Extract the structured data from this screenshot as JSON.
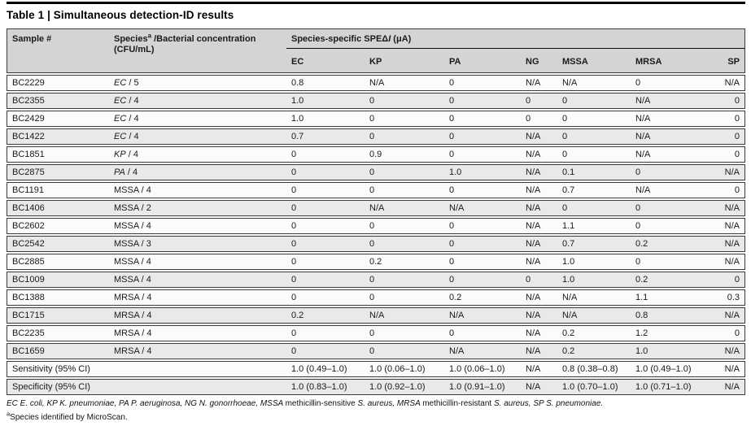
{
  "title": "Table 1 | Simultaneous detection-ID results",
  "header": {
    "col_sample": "Sample #",
    "col_species_main": "Species",
    "col_species_sup": "a",
    "col_species_rest": " /Bacterial concentration",
    "col_species_line2": "(CFU/mL)",
    "group_label_pre": "Species-specific SPEΔ",
    "group_label_italic": "I",
    "group_label_post": " (μA)",
    "sub_columns": [
      "EC",
      "KP",
      "PA",
      "NG",
      "MSSA",
      "MRSA",
      "SP"
    ]
  },
  "rows": [
    {
      "sample": "BC2229",
      "species_abbr": "EC",
      "species_rest": " / 5",
      "species_italic": true,
      "values": [
        "0.8",
        "N/A",
        "0",
        "N/A",
        "N/A",
        "0",
        "N/A"
      ]
    },
    {
      "sample": "BC2355",
      "species_abbr": "EC",
      "species_rest": " / 4",
      "species_italic": true,
      "values": [
        "1.0",
        "0",
        "0",
        "0",
        "0",
        "N/A",
        "0"
      ]
    },
    {
      "sample": "BC2429",
      "species_abbr": "EC",
      "species_rest": " / 4",
      "species_italic": true,
      "values": [
        "1.0",
        "0",
        "0",
        "0",
        "0",
        "N/A",
        "0"
      ]
    },
    {
      "sample": "BC1422",
      "species_abbr": "EC",
      "species_rest": " / 4",
      "species_italic": true,
      "values": [
        "0.7",
        "0",
        "0",
        "N/A",
        "0",
        "N/A",
        "0"
      ]
    },
    {
      "sample": "BC1851",
      "species_abbr": "KP",
      "species_rest": " / 4",
      "species_italic": true,
      "values": [
        "0",
        "0.9",
        "0",
        "N/A",
        "0",
        "N/A",
        "0"
      ]
    },
    {
      "sample": "BC2875",
      "species_abbr": "PA",
      "species_rest": " / 4",
      "species_italic": true,
      "values": [
        "0",
        "0",
        "1.0",
        "N/A",
        "0.1",
        "0",
        "N/A"
      ]
    },
    {
      "sample": "BC1191",
      "species_abbr": "MSSA",
      "species_rest": " / 4",
      "species_italic": false,
      "values": [
        "0",
        "0",
        "0",
        "N/A",
        "0.7",
        "N/A",
        "0"
      ]
    },
    {
      "sample": "BC1406",
      "species_abbr": "MSSA",
      "species_rest": " / 2",
      "species_italic": false,
      "values": [
        "0",
        "N/A",
        "N/A",
        "N/A",
        "0",
        "0",
        "N/A"
      ]
    },
    {
      "sample": "BC2602",
      "species_abbr": "MSSA",
      "species_rest": " / 4",
      "species_italic": false,
      "values": [
        "0",
        "0",
        "0",
        "N/A",
        "1.1",
        "0",
        "N/A"
      ]
    },
    {
      "sample": "BC2542",
      "species_abbr": "MSSA",
      "species_rest": " / 3",
      "species_italic": false,
      "values": [
        "0",
        "0",
        "0",
        "N/A",
        "0.7",
        "0.2",
        "N/A"
      ]
    },
    {
      "sample": "BC2885",
      "species_abbr": "MSSA",
      "species_rest": " / 4",
      "species_italic": false,
      "values": [
        "0",
        "0.2",
        "0",
        "N/A",
        "1.0",
        "0",
        "N/A"
      ]
    },
    {
      "sample": "BC1009",
      "species_abbr": "MSSA",
      "species_rest": " / 4",
      "species_italic": false,
      "values": [
        "0",
        "0",
        "0",
        "0",
        "1.0",
        "0.2",
        "0"
      ]
    },
    {
      "sample": "BC1388",
      "species_abbr": "MRSA",
      "species_rest": " / 4",
      "species_italic": false,
      "values": [
        "0",
        "0",
        "0.2",
        "N/A",
        "N/A",
        "1.1",
        "0.3"
      ]
    },
    {
      "sample": "BC1715",
      "species_abbr": "MRSA",
      "species_rest": " / 4",
      "species_italic": false,
      "values": [
        "0.2",
        "N/A",
        "N/A",
        "N/A",
        "N/A",
        "0.8",
        "N/A"
      ]
    },
    {
      "sample": "BC2235",
      "species_abbr": "MRSA",
      "species_rest": " / 4",
      "species_italic": false,
      "values": [
        "0",
        "0",
        "0",
        "N/A",
        "0.2",
        "1.2",
        "0"
      ]
    },
    {
      "sample": "BC1659",
      "species_abbr": "MRSA",
      "species_rest": " / 4",
      "species_italic": false,
      "values": [
        "0",
        "0",
        "N/A",
        "N/A",
        "0.2",
        "1.0",
        "N/A"
      ]
    }
  ],
  "stats": [
    {
      "label": "Sensitivity (95% CI)",
      "values": [
        "1.0 (0.49–1.0)",
        "1.0 (0.06–1.0)",
        "1.0 (0.06–1.0)",
        "N/A",
        "0.8 (0.38–0.8)",
        "1.0 (0.49–1.0)",
        "N/A"
      ]
    },
    {
      "label": "Specificity (95% CI)",
      "values": [
        "1.0 (0.83–1.0)",
        "1.0 (0.92–1.0)",
        "1.0 (0.91–1.0)",
        "N/A",
        "1.0 (0.70–1.0)",
        "1.0 (0.71–1.0)",
        "N/A"
      ]
    }
  ],
  "footnotes": {
    "abbrev_segments": [
      {
        "text": "EC E. coli, KP K. pneumoniae, PA P. aeruginosa, NG N. gonorrhoeae, MSSA ",
        "italic": true
      },
      {
        "text": "methicillin-sensitive ",
        "italic": false
      },
      {
        "text": "S. aureus, MRSA ",
        "italic": true
      },
      {
        "text": "methicillin-resistant ",
        "italic": false
      },
      {
        "text": "S. aureus, SP S. pneumoniae.",
        "italic": true
      }
    ],
    "note_sup": "a",
    "note_text": "Species identified by MicroScan."
  },
  "colors": {
    "header_bg": "#d4d4d4",
    "row_bg": "#fbfbfb",
    "row_alt_bg": "#e9e9e9",
    "border": "#3a3a3a",
    "rule": "#000000"
  }
}
